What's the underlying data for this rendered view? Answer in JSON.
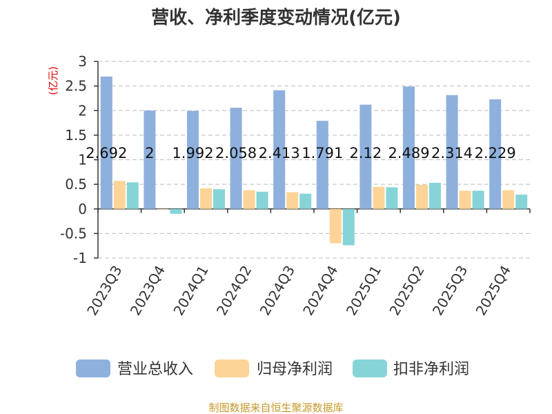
{
  "chart_data": {
    "type": "bar",
    "title": "营收、净利季度变动情况(亿元)",
    "unit_label": "(亿元)",
    "categories": [
      "2023Q3",
      "2023Q4",
      "2024Q1",
      "2024Q2",
      "2024Q3",
      "2024Q4",
      "2025Q1",
      "2025Q2",
      "2025Q3",
      "2025Q4"
    ],
    "series": [
      {
        "name": "营业总收入",
        "color": "#8eb0dd",
        "values": [
          2.692,
          2,
          1.992,
          2.058,
          2.413,
          1.791,
          2.12,
          2.489,
          2.314,
          2.229
        ],
        "labels": [
          "2.692",
          "2",
          "1.992",
          "2.058",
          "2.413",
          "1.791",
          "2.12",
          "2.489",
          "2.314",
          "2.229"
        ]
      },
      {
        "name": "归母净利润",
        "color": "#fdd497",
        "values": [
          0.57,
          0.0,
          0.42,
          0.38,
          0.34,
          -0.7,
          0.45,
          0.49,
          0.37,
          0.38
        ]
      },
      {
        "name": "扣非净利润",
        "color": "#86d4d7",
        "values": [
          0.54,
          -0.1,
          0.4,
          0.35,
          0.31,
          -0.74,
          0.44,
          0.53,
          0.37,
          0.29
        ]
      }
    ],
    "ylim": [
      -1,
      3
    ],
    "yticks": [
      "3",
      "2.5",
      "2",
      "1.5",
      "1",
      "0.5",
      "0",
      "-0.5",
      "-1"
    ],
    "ytick_values": [
      3,
      2.5,
      2,
      1.5,
      1,
      0.5,
      0,
      -0.5,
      -1
    ],
    "grid": true,
    "legend_position": "bottom",
    "source": "制图数据来自恒生聚源数据库"
  }
}
